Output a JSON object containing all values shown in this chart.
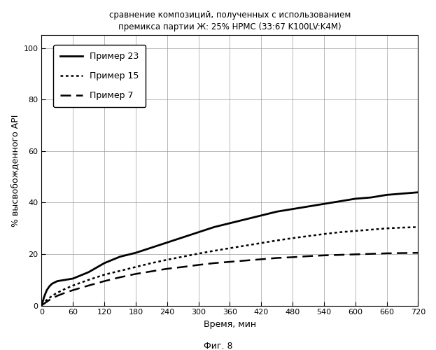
{
  "title_line1": "сравнение композиций, полученных с использованием",
  "title_line2": "премикса партии Ж: 25% HPMC (33:67 K100LV:K4M)",
  "xlabel": "Время, мин",
  "ylabel": "% высвобожденного API",
  "fig_label": "Фиг. 8",
  "xlim": [
    0,
    720
  ],
  "ylim": [
    0,
    105
  ],
  "xticks": [
    0,
    60,
    120,
    180,
    240,
    300,
    360,
    420,
    480,
    540,
    600,
    660,
    720
  ],
  "yticks": [
    0,
    20,
    40,
    60,
    80,
    100
  ],
  "series": {
    "primer23": {
      "label": "Пример 23",
      "linewidth": 2.0,
      "color": "#000000",
      "x": [
        0,
        5,
        10,
        15,
        20,
        30,
        45,
        60,
        90,
        120,
        150,
        180,
        210,
        240,
        270,
        300,
        330,
        360,
        390,
        420,
        450,
        480,
        510,
        540,
        570,
        600,
        630,
        660,
        690,
        720
      ],
      "y": [
        0,
        3.5,
        6.0,
        7.5,
        8.5,
        9.5,
        10.0,
        10.5,
        13.0,
        16.5,
        19.0,
        20.5,
        22.5,
        24.5,
        26.5,
        28.5,
        30.5,
        32.0,
        33.5,
        35.0,
        36.5,
        37.5,
        38.5,
        39.5,
        40.5,
        41.5,
        42.0,
        43.0,
        43.5,
        44.0
      ]
    },
    "primer15": {
      "label": "Пример 15",
      "linewidth": 1.8,
      "color": "#000000",
      "x": [
        0,
        5,
        10,
        15,
        20,
        30,
        45,
        60,
        90,
        120,
        150,
        180,
        210,
        240,
        270,
        300,
        330,
        360,
        390,
        420,
        450,
        480,
        510,
        540,
        570,
        600,
        630,
        660,
        690,
        720
      ],
      "y": [
        0.3,
        1.2,
        2.2,
        3.0,
        3.8,
        5.0,
        6.5,
        7.8,
        10.0,
        12.0,
        13.5,
        15.0,
        16.5,
        17.8,
        19.0,
        20.2,
        21.3,
        22.3,
        23.3,
        24.3,
        25.3,
        26.2,
        27.0,
        27.8,
        28.5,
        29.0,
        29.5,
        30.0,
        30.3,
        30.5
      ]
    },
    "primer7": {
      "label": "Пример 7",
      "linewidth": 1.8,
      "color": "#000000",
      "x": [
        0,
        5,
        10,
        15,
        20,
        30,
        45,
        60,
        90,
        120,
        150,
        180,
        210,
        240,
        270,
        300,
        330,
        360,
        390,
        420,
        450,
        480,
        510,
        540,
        570,
        600,
        630,
        660,
        690,
        720
      ],
      "y": [
        0.1,
        0.8,
        1.5,
        2.2,
        2.8,
        3.8,
        5.0,
        6.0,
        7.8,
        9.5,
        11.0,
        12.3,
        13.3,
        14.3,
        15.0,
        15.8,
        16.5,
        17.0,
        17.5,
        18.0,
        18.5,
        18.8,
        19.2,
        19.5,
        19.7,
        19.9,
        20.1,
        20.3,
        20.4,
        20.5
      ]
    }
  },
  "background_color": "#ffffff",
  "grid_color": "#999999",
  "title_fontsize": 8.5,
  "axis_label_fontsize": 9,
  "tick_fontsize": 8,
  "legend_fontsize": 9,
  "fig_label_fontsize": 9
}
